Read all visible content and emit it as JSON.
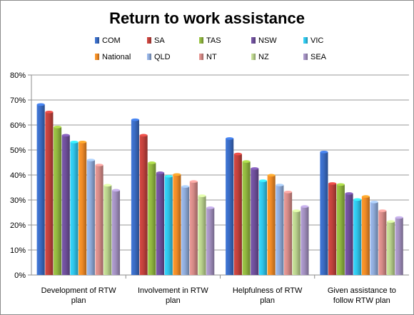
{
  "chart_data": {
    "type": "bar",
    "title": "Return to work assistance",
    "xlabel": "",
    "ylabel": "",
    "ylim": [
      0,
      80
    ],
    "y_ticks": [
      "0%",
      "10%",
      "20%",
      "30%",
      "40%",
      "50%",
      "60%",
      "70%",
      "80%"
    ],
    "grid": true,
    "legend_position": "top",
    "categories": [
      [
        "Development of RTW",
        "plan"
      ],
      [
        "Involvement in RTW",
        "plan"
      ],
      [
        "Helpfulness of RTW",
        "plan"
      ],
      [
        "Given assistance to",
        "follow RTW plan"
      ]
    ],
    "series": [
      {
        "name": "COM",
        "color": "#3a6bc2",
        "values": [
          68.2,
          62.1,
          54.6,
          49.2
        ]
      },
      {
        "name": "SA",
        "color": "#c0413c",
        "values": [
          65.2,
          55.9,
          48.4,
          36.6
        ]
      },
      {
        "name": "TAS",
        "color": "#8fb53f",
        "values": [
          59.2,
          44.9,
          45.4,
          36.2
        ]
      },
      {
        "name": "NSW",
        "color": "#6e4f9a",
        "values": [
          55.9,
          40.9,
          42.6,
          32.6
        ]
      },
      {
        "name": "VIC",
        "color": "#2fc3e8",
        "values": [
          53.2,
          39.5,
          37.7,
          30.2
        ]
      },
      {
        "name": "National",
        "color": "#ef8a26",
        "values": [
          53.2,
          40.2,
          39.9,
          31.4
        ]
      },
      {
        "name": "QLD",
        "color": "#8eaad8",
        "values": [
          46.0,
          35.4,
          36.0,
          29.2
        ]
      },
      {
        "name": "NT",
        "color": "#d48a87",
        "values": [
          44.0,
          37.4,
          33.2,
          25.7
        ]
      },
      {
        "name": "NZ",
        "color": "#b7cf8b",
        "values": [
          35.9,
          31.7,
          25.7,
          21.4
        ]
      },
      {
        "name": "SEA",
        "color": "#a18fbe",
        "values": [
          33.9,
          26.9,
          27.4,
          23.0
        ]
      }
    ]
  }
}
